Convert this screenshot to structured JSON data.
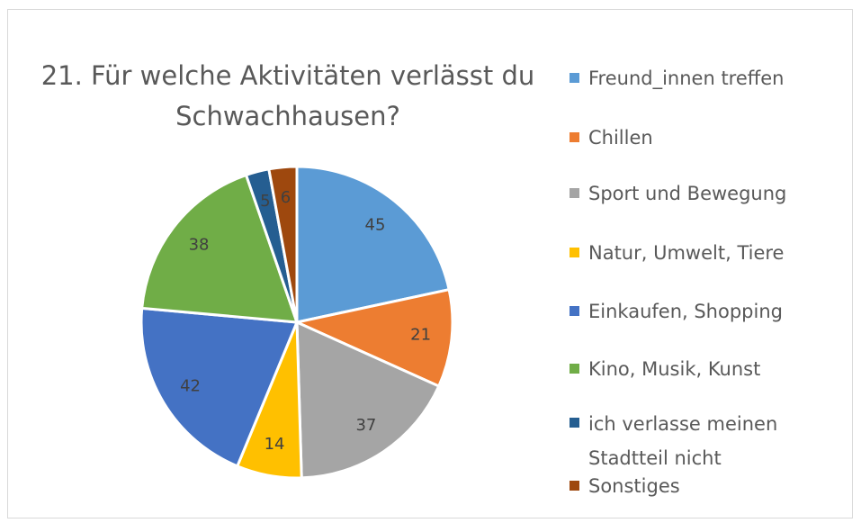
{
  "chart_data": {
    "type": "pie",
    "title": "21. Für welche Aktivitäten verlässt du Schwachhausen?",
    "categories": [
      "Freund_innen treffen",
      "Chillen",
      "Sport und Bewegung",
      "Natur, Umwelt, Tiere",
      "Einkaufen, Shopping",
      "Kino, Musik, Kunst",
      "ich verlasse meinen Stadtteil nicht",
      "Sonstiges"
    ],
    "values": [
      45,
      21,
      37,
      14,
      42,
      38,
      5,
      6
    ],
    "colors": [
      "#5b9bd5",
      "#ed7d31",
      "#a5a5a5",
      "#ffc000",
      "#4472c4",
      "#70ad47",
      "#255e91",
      "#9e480e"
    ],
    "legend": "right"
  }
}
